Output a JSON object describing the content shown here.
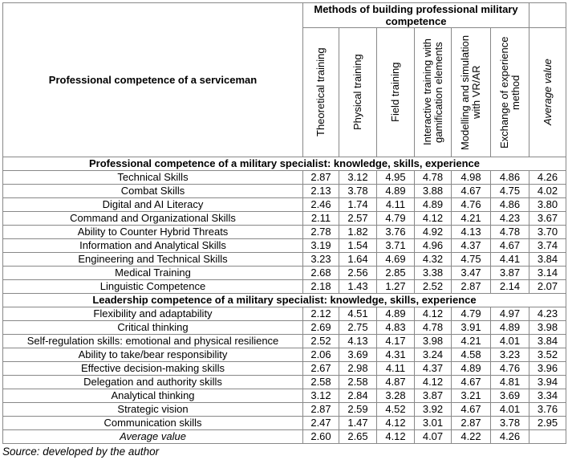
{
  "table": {
    "corner_header": "Professional competence of a serviceman",
    "group_header": "Methods of building professional military competence",
    "columns": [
      "Theoretical training",
      "Physical training",
      "Field training",
      "Interactive training with gamification elements",
      "Modelling and simulation with VR/AR",
      "Exchange of experience method",
      "Average value"
    ],
    "sections": [
      {
        "title": "Professional competence of a military specialist: knowledge, skills, experience",
        "rows": [
          {
            "label": "Technical Skills",
            "values": [
              "2.87",
              "3.12",
              "4.95",
              "4.78",
              "4.98",
              "4.86",
              "4.26"
            ]
          },
          {
            "label": "Combat Skills",
            "values": [
              "2.13",
              "3.78",
              "4.89",
              "3.88",
              "4.67",
              "4.75",
              "4.02"
            ]
          },
          {
            "label": "Digital and AI Literacy",
            "values": [
              "2.46",
              "1.74",
              "4.11",
              "4.89",
              "4.76",
              "4.86",
              "3.80"
            ]
          },
          {
            "label": "Command and Organizational Skills",
            "values": [
              "2.11",
              "2.57",
              "4.79",
              "4.12",
              "4.21",
              "4.23",
              "3.67"
            ]
          },
          {
            "label": "Ability to Counter Hybrid Threats",
            "values": [
              "2.78",
              "1.82",
              "3.76",
              "4.92",
              "4.13",
              "4.78",
              "3.70"
            ]
          },
          {
            "label": "Information and Analytical Skills",
            "values": [
              "3.19",
              "1.54",
              "3.71",
              "4.96",
              "4.37",
              "4.67",
              "3.74"
            ]
          },
          {
            "label": "Engineering and Technical Skills",
            "values": [
              "3.23",
              "1.64",
              "4.69",
              "4.32",
              "4.75",
              "4.41",
              "3.84"
            ]
          },
          {
            "label": "Medical Training",
            "values": [
              "2.68",
              "2.56",
              "2.85",
              "3.38",
              "3.47",
              "3.87",
              "3.14"
            ]
          },
          {
            "label": "Linguistic Competence",
            "values": [
              "2.18",
              "1.43",
              "1.27",
              "2.52",
              "2.87",
              "2.14",
              "2.07"
            ]
          }
        ]
      },
      {
        "title": "Leadership competence of a military specialist: knowledge, skills, experience",
        "rows": [
          {
            "label": "Flexibility and adaptability",
            "values": [
              "2.12",
              "4.51",
              "4.89",
              "4.12",
              "4.79",
              "4.97",
              "4.23"
            ]
          },
          {
            "label": "Critical thinking",
            "values": [
              "2.69",
              "2.75",
              "4.83",
              "4.78",
              "3.91",
              "4.89",
              "3.98"
            ]
          },
          {
            "label": "Self-regulation skills: emotional and physical resilience",
            "values": [
              "2.52",
              "4.13",
              "4.17",
              "3.98",
              "4.21",
              "4.01",
              "3.84"
            ]
          },
          {
            "label": "Ability to take/bear responsibility",
            "values": [
              "2.06",
              "3.69",
              "4.31",
              "3.24",
              "4.58",
              "3.23",
              "3.52"
            ]
          },
          {
            "label": "Effective decision-making skills",
            "values": [
              "2.67",
              "2.98",
              "4.11",
              "4.37",
              "4.89",
              "4.76",
              "3.96"
            ]
          },
          {
            "label": "Delegation and authority skills",
            "values": [
              "2.58",
              "2.58",
              "4.87",
              "4.12",
              "4.67",
              "4.81",
              "3.94"
            ]
          },
          {
            "label": "Analytical thinking",
            "values": [
              "3.12",
              "2.84",
              "3.28",
              "3.87",
              "3.21",
              "3.69",
              "3.34"
            ]
          },
          {
            "label": "Strategic vision",
            "values": [
              "2.87",
              "2.59",
              "4.52",
              "3.92",
              "4.67",
              "4.01",
              "3.76"
            ]
          },
          {
            "label": "Communication skills",
            "values": [
              "2.47",
              "1.47",
              "4.12",
              "3.01",
              "2.87",
              "3.78",
              "2.95"
            ]
          }
        ]
      }
    ],
    "average_row": {
      "label": "Average value",
      "values": [
        "2.60",
        "2.65",
        "4.12",
        "4.07",
        "4.22",
        "4.26"
      ]
    }
  },
  "source": "Source: developed by the author"
}
